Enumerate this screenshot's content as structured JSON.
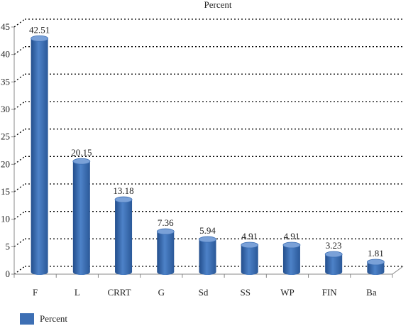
{
  "chart_data": {
    "type": "bar",
    "title": "Percent",
    "categories": [
      "F",
      "L",
      "CRRT",
      "G",
      "Sd",
      "SS",
      "WP",
      "FIN",
      "Ba"
    ],
    "series": [
      {
        "name": "Percent",
        "values": [
          42.51,
          20.15,
          13.18,
          7.36,
          5.94,
          4.91,
          4.91,
          3.23,
          1.81
        ],
        "labels": [
          "42.51",
          "20.15",
          "13.18",
          "7.36",
          "5.94",
          "4.91",
          "4.91",
          "3.23",
          "1.81"
        ]
      }
    ],
    "ylim": [
      0,
      45
    ],
    "yticks": [
      0,
      5,
      10,
      15,
      20,
      25,
      30,
      35,
      40,
      45
    ],
    "grid": true,
    "legend_position": "bottom-left",
    "colors": {
      "bar": "#3d6fb4",
      "bar_dark": "#234e8c",
      "bar_light": "#7aa1d8",
      "grid": "#000000",
      "axis": "#888888"
    }
  }
}
